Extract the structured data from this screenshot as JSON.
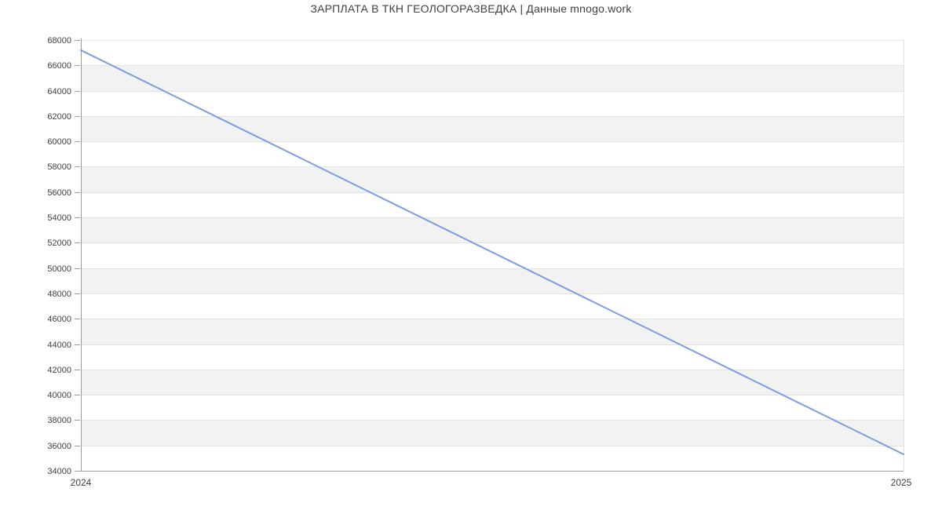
{
  "title": "ЗАРПЛАТА В ТКН ГЕОЛОГОРАЗВЕДКА | Данные mnogo.work",
  "chart_data": {
    "type": "line",
    "title": "ЗАРПЛАТА В ТКН ГЕОЛОГОРАЗВЕДКА | Данные mnogo.work",
    "x": [
      "2024",
      "2025"
    ],
    "values": [
      67200,
      35300
    ],
    "xlabel": "",
    "ylabel": "",
    "ylim": [
      34000,
      68000
    ],
    "ytick_step": 2000,
    "yticks": [
      34000,
      36000,
      38000,
      40000,
      42000,
      44000,
      46000,
      48000,
      50000,
      52000,
      54000,
      56000,
      58000,
      60000,
      62000,
      64000,
      66000,
      68000
    ],
    "grid": true,
    "banded_background": true,
    "legend": false,
    "colors": {
      "line": "#7b9de2",
      "band": "#f2f2f2",
      "grid": "#e2e2e2",
      "axis": "#9b9b9b",
      "text": "#3f3f3f",
      "background": "#ffffff"
    }
  }
}
